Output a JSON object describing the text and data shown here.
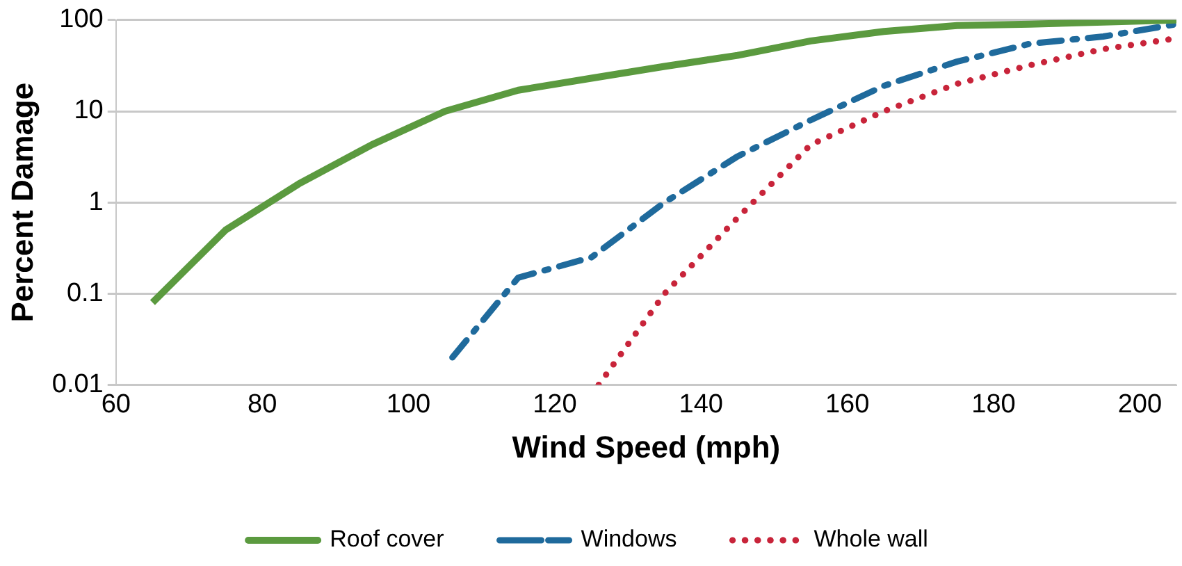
{
  "chart_data": {
    "type": "line",
    "xlabel": "Wind Speed (mph)",
    "ylabel": "Percent Damage",
    "log": "y",
    "grid": "y",
    "legend": "bottom",
    "marker": "none",
    "xlim": [
      60,
      205
    ],
    "xticks": [
      60,
      80,
      100,
      120,
      140,
      160,
      180,
      200
    ],
    "ylim": [
      0.01,
      100
    ],
    "yticks": [
      0.01,
      0.1,
      1,
      10,
      100
    ],
    "series": [
      {
        "name": "Roof cover",
        "color": "#5b9a3f",
        "line_style": "solid",
        "x": [
          65,
          75,
          85,
          95,
          105,
          115,
          125,
          135,
          145,
          155,
          165,
          175,
          185,
          195,
          205
        ],
        "values": [
          0.08,
          0.5,
          1.6,
          4.3,
          10,
          17,
          23,
          31,
          41,
          59,
          75,
          87,
          90,
          95,
          100
        ]
      },
      {
        "name": "Windows",
        "color": "#1f6a9c",
        "line_style": "dashed",
        "x": [
          106,
          115,
          125,
          135,
          145,
          155,
          165,
          175,
          185,
          195,
          205
        ],
        "values": [
          0.02,
          0.15,
          0.25,
          1,
          3.2,
          8,
          19,
          35,
          55,
          66,
          90
        ]
      },
      {
        "name": "Whole wall",
        "color": "#c8243a",
        "line_style": "dotted",
        "x": [
          126,
          135,
          145,
          155,
          165,
          175,
          185,
          195,
          205
        ],
        "values": [
          0.01,
          0.1,
          0.68,
          4.3,
          10,
          20,
          32,
          48,
          63
        ]
      }
    ]
  }
}
